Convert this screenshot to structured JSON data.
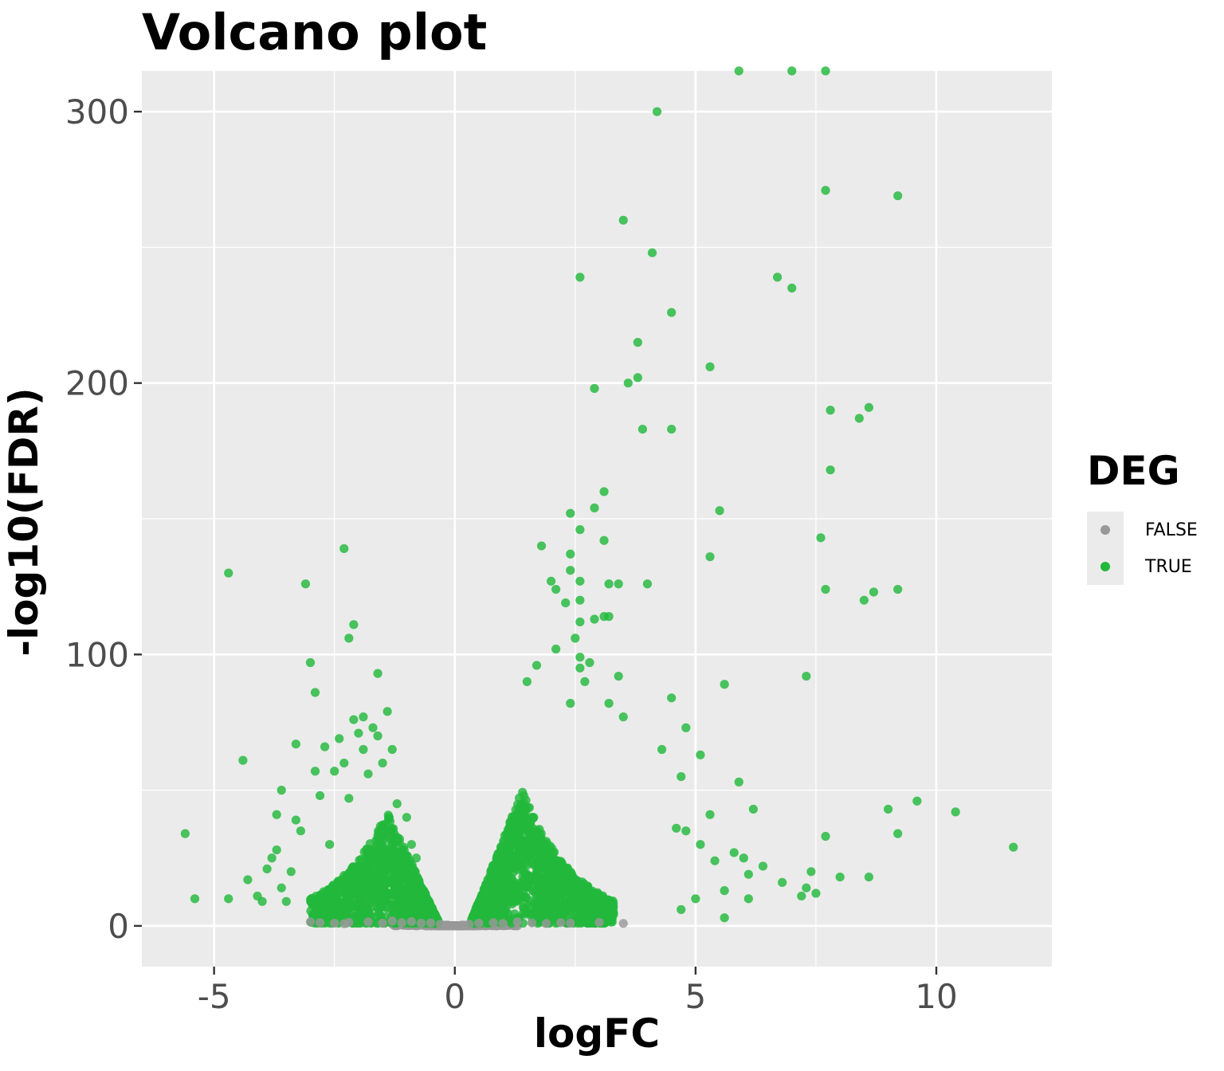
{
  "chart_data": {
    "type": "scatter",
    "title": "Volcano plot",
    "xlabel": "logFC",
    "ylabel": "-log10(FDR)",
    "xlim": [
      -6.5,
      12.4
    ],
    "ylim": [
      -15,
      315
    ],
    "x_ticks": [
      -5,
      0,
      5,
      10
    ],
    "x_tick_labels": [
      "-5",
      "0",
      "5",
      "10"
    ],
    "y_ticks": [
      0,
      100,
      200,
      300
    ],
    "y_tick_labels": [
      "0",
      "100",
      "200",
      "300"
    ],
    "grid": true,
    "legend": {
      "title": "DEG",
      "position": "right",
      "entries": [
        {
          "label": "FALSE",
          "color": "#999999"
        },
        {
          "label": "TRUE",
          "color": "#22b83c"
        }
      ]
    },
    "series": [
      {
        "name": "FALSE",
        "color": "#999999",
        "points": [
          [
            -3.0,
            1.5
          ],
          [
            -2.8,
            1.2
          ],
          [
            -2.5,
            1.0
          ],
          [
            -2.3,
            0.8
          ],
          [
            -2.2,
            1.3
          ],
          [
            -1.8,
            1.5
          ],
          [
            -1.5,
            1.0
          ],
          [
            -1.3,
            1.8
          ],
          [
            -1.1,
            1.2
          ],
          [
            -0.9,
            1.6
          ],
          [
            -0.7,
            1.0
          ],
          [
            -0.5,
            1.1
          ],
          [
            -0.3,
            0.6
          ],
          [
            -0.15,
            0.3
          ],
          [
            0.0,
            0.1
          ],
          [
            0.15,
            0.3
          ],
          [
            0.3,
            0.6
          ],
          [
            0.5,
            1.0
          ],
          [
            0.8,
            1.2
          ],
          [
            1.0,
            0.9
          ],
          [
            1.3,
            1.5
          ],
          [
            1.6,
            1.1
          ],
          [
            1.9,
            0.9
          ],
          [
            2.2,
            1.2
          ],
          [
            2.4,
            1.0
          ],
          [
            3.0,
            1.3
          ],
          [
            3.5,
            0.9
          ]
        ]
      },
      {
        "name": "TRUE",
        "color": "#22b83c",
        "points": [
          [
            -5.6,
            34
          ],
          [
            -5.4,
            10
          ],
          [
            -4.7,
            130
          ],
          [
            -4.7,
            10
          ],
          [
            -4.4,
            61
          ],
          [
            -4.3,
            17
          ],
          [
            -4.1,
            11
          ],
          [
            -4.0,
            9
          ],
          [
            -3.9,
            21
          ],
          [
            -3.8,
            25
          ],
          [
            -3.7,
            28
          ],
          [
            -3.7,
            41
          ],
          [
            -3.6,
            14
          ],
          [
            -3.6,
            50
          ],
          [
            -3.5,
            9
          ],
          [
            -3.4,
            20
          ],
          [
            -3.3,
            39
          ],
          [
            -3.3,
            67
          ],
          [
            -3.2,
            35
          ],
          [
            -3.1,
            126
          ],
          [
            -3.0,
            97
          ],
          [
            -2.9,
            86
          ],
          [
            -2.9,
            57
          ],
          [
            -2.8,
            48
          ],
          [
            -2.7,
            66
          ],
          [
            -2.6,
            30
          ],
          [
            -2.5,
            57
          ],
          [
            -2.4,
            69
          ],
          [
            -2.3,
            139
          ],
          [
            -2.3,
            60
          ],
          [
            -2.2,
            106
          ],
          [
            -2.2,
            47
          ],
          [
            -2.1,
            111
          ],
          [
            -2.1,
            76
          ],
          [
            -2.0,
            71
          ],
          [
            -1.9,
            77
          ],
          [
            -1.9,
            65
          ],
          [
            -1.8,
            56
          ],
          [
            -1.7,
            73
          ],
          [
            -1.6,
            70
          ],
          [
            -1.6,
            93
          ],
          [
            -1.5,
            60
          ],
          [
            -1.4,
            79
          ],
          [
            -1.3,
            65
          ],
          [
            -1.2,
            45
          ],
          [
            -1.0,
            40
          ],
          [
            -0.9,
            30
          ],
          [
            -0.8,
            25
          ],
          [
            3.1,
            160
          ],
          [
            2.9,
            154
          ],
          [
            2.4,
            152
          ],
          [
            2.6,
            146
          ],
          [
            1.8,
            140
          ],
          [
            2.4,
            137
          ],
          [
            3.1,
            142
          ],
          [
            2.4,
            131
          ],
          [
            2.6,
            127
          ],
          [
            2.0,
            127
          ],
          [
            3.2,
            126
          ],
          [
            3.4,
            126
          ],
          [
            2.1,
            124
          ],
          [
            4.0,
            126
          ],
          [
            2.6,
            120
          ],
          [
            2.3,
            119
          ],
          [
            2.6,
            112
          ],
          [
            2.9,
            113
          ],
          [
            3.1,
            114
          ],
          [
            3.2,
            114
          ],
          [
            2.5,
            106
          ],
          [
            2.1,
            102
          ],
          [
            2.6,
            99
          ],
          [
            2.8,
            97
          ],
          [
            1.7,
            96
          ],
          [
            2.6,
            95
          ],
          [
            3.4,
            92
          ],
          [
            2.7,
            90
          ],
          [
            1.5,
            90
          ],
          [
            2.4,
            82
          ],
          [
            3.2,
            82
          ],
          [
            3.5,
            77
          ],
          [
            4.5,
            84
          ],
          [
            4.8,
            73
          ],
          [
            4.3,
            65
          ],
          [
            5.1,
            63
          ],
          [
            4.7,
            55
          ],
          [
            5.9,
            53
          ],
          [
            6.2,
            43
          ],
          [
            5.3,
            41
          ],
          [
            4.6,
            36
          ],
          [
            4.8,
            35
          ],
          [
            5.1,
            30
          ],
          [
            5.4,
            24
          ],
          [
            5.8,
            27
          ],
          [
            6.0,
            25
          ],
          [
            6.1,
            19
          ],
          [
            6.4,
            22
          ],
          [
            6.8,
            16
          ],
          [
            7.3,
            14
          ],
          [
            7.5,
            12
          ],
          [
            7.2,
            11
          ],
          [
            7.4,
            20
          ],
          [
            7.7,
            33
          ],
          [
            8.0,
            18
          ],
          [
            8.6,
            18
          ],
          [
            9.0,
            43
          ],
          [
            9.2,
            34
          ],
          [
            9.6,
            46
          ],
          [
            10.4,
            42
          ],
          [
            11.6,
            29
          ],
          [
            5.6,
            13
          ],
          [
            6.1,
            10
          ],
          [
            5.0,
            10
          ],
          [
            4.7,
            6
          ],
          [
            5.6,
            3
          ],
          [
            4.2,
            300
          ],
          [
            3.5,
            260
          ],
          [
            4.1,
            248
          ],
          [
            2.6,
            239
          ],
          [
            6.7,
            239
          ],
          [
            7.0,
            235
          ],
          [
            4.5,
            226
          ],
          [
            3.8,
            215
          ],
          [
            5.3,
            206
          ],
          [
            3.8,
            202
          ],
          [
            3.6,
            200
          ],
          [
            2.9,
            198
          ],
          [
            3.9,
            183
          ],
          [
            4.5,
            183
          ],
          [
            7.8,
            190
          ],
          [
            8.4,
            187
          ],
          [
            8.6,
            191
          ],
          [
            7.8,
            168
          ],
          [
            5.5,
            153
          ],
          [
            5.3,
            136
          ],
          [
            7.6,
            143
          ],
          [
            7.7,
            124
          ],
          [
            8.5,
            120
          ],
          [
            8.7,
            123
          ],
          [
            9.2,
            124
          ],
          [
            7.7,
            271
          ],
          [
            9.2,
            269
          ],
          [
            5.6,
            89
          ],
          [
            7.3,
            92
          ],
          [
            5.9,
            315
          ],
          [
            7.0,
            315
          ],
          [
            7.7,
            315
          ]
        ]
      }
    ],
    "dense_clouds": [
      {
        "series": "TRUE",
        "x_range": [
          -3.0,
          -0.35
        ],
        "y_max": 42,
        "count": 1200
      },
      {
        "series": "TRUE",
        "x_range": [
          0.35,
          3.3
        ],
        "y_max": 50,
        "count": 1500
      },
      {
        "series": "FALSE",
        "x_range": [
          -1.3,
          1.3
        ],
        "y_max": 1.6,
        "count": 500
      }
    ]
  }
}
